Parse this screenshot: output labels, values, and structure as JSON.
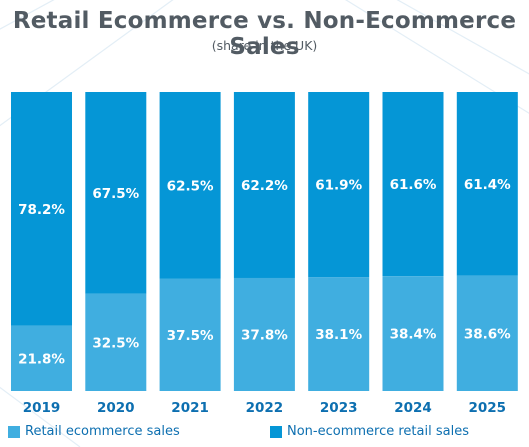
{
  "title": "Retail Ecommerce vs. Non-Ecommerce Sales",
  "subtitle": "(share in the UK)",
  "colors": {
    "ecommerce": "#40aee0",
    "non_ecommerce": "#0596d6",
    "label": "#ffffff",
    "axis_label": "#0d6fb0",
    "title": "#525b63"
  },
  "legend": {
    "ecommerce": "Retail ecommerce sales",
    "non_ecommerce": "Non-ecommerce retail sales"
  },
  "chart_data": {
    "type": "bar",
    "stacked": true,
    "title": "Retail Ecommerce vs. Non-Ecommerce Sales",
    "subtitle": "(share in the UK)",
    "categories": [
      "2019",
      "2020",
      "2021",
      "2022",
      "2023",
      "2024",
      "2025"
    ],
    "series": [
      {
        "name": "Retail ecommerce sales",
        "values": [
          21.8,
          32.5,
          37.5,
          37.8,
          38.1,
          38.4,
          38.6
        ],
        "labels": [
          "21.8%",
          "32.5%",
          "37.5%",
          "37.8%",
          "38.1%",
          "38.4%",
          "38.6%"
        ]
      },
      {
        "name": "Non-ecommerce retail sales",
        "values": [
          78.2,
          67.5,
          62.5,
          62.2,
          61.9,
          61.6,
          61.4
        ],
        "labels": [
          "78.2%",
          "67.5%",
          "62.5%",
          "62.2%",
          "61.9%",
          "61.6%",
          "61.4%"
        ]
      }
    ],
    "ylim": [
      0,
      100
    ],
    "grid": false,
    "legend_position": "bottom"
  }
}
